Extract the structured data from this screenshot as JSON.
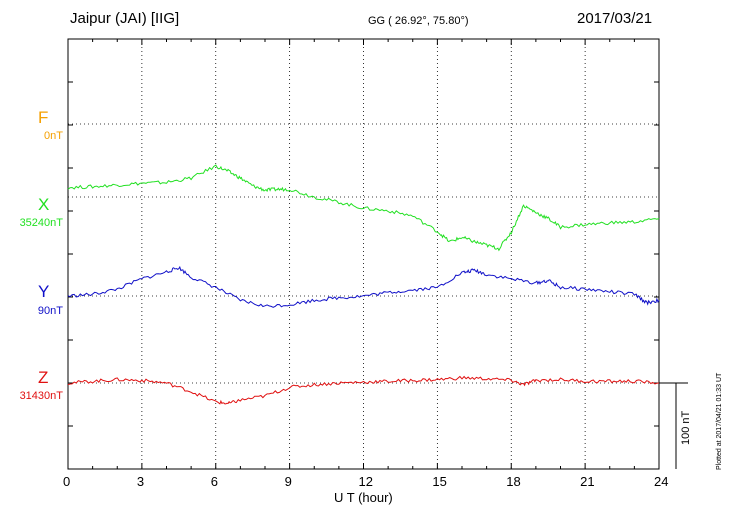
{
  "header": {
    "station": "Jaipur (JAI)  [IIG]",
    "coords": "GG ( 26.92°,  75.80°)",
    "date": "2017/03/21"
  },
  "chart_data": {
    "type": "line",
    "xlabel": "U T (hour)",
    "xlim": [
      0,
      24
    ],
    "x_ticks": [
      "0",
      "3",
      "6",
      "9",
      "12",
      "15",
      "18",
      "21",
      "24"
    ],
    "scale_bar": "100 nT",
    "plotted_note": "Plotted at 2017/04/21 01:33 UT",
    "components": [
      {
        "name": "F",
        "baseline": "0nT",
        "color": "#f5a000",
        "x": [],
        "values": []
      },
      {
        "name": "X",
        "baseline": "35240nT",
        "color": "#22e022",
        "x": [
          0,
          1,
          2,
          3,
          4,
          5,
          6,
          6.5,
          7,
          7.5,
          8,
          8.5,
          9,
          10,
          11,
          12,
          13,
          14,
          15,
          15.5,
          16,
          16.5,
          17,
          17.5,
          18,
          18.5,
          19,
          19.5,
          20,
          21,
          22,
          23,
          24
        ],
        "values": [
          11,
          12,
          14,
          16,
          17,
          22,
          36,
          30,
          22,
          13,
          8,
          9,
          9,
          0,
          -6,
          -13,
          -16,
          -22,
          -40,
          -52,
          -47,
          -52,
          -56,
          -60,
          -41,
          -10,
          -18,
          -25,
          -35,
          -32,
          -30,
          -29,
          -25
        ]
      },
      {
        "name": "Y",
        "baseline": "90nT",
        "color": "#1010c8",
        "x": [
          0,
          1,
          2,
          3,
          4,
          4.5,
          5,
          6,
          7,
          8,
          9,
          10,
          11,
          12,
          13,
          14,
          15,
          16,
          16.5,
          17,
          18,
          19,
          19.5,
          20,
          21,
          22,
          23,
          23.5,
          24
        ],
        "values": [
          0,
          2,
          8,
          20,
          28,
          33,
          22,
          10,
          -5,
          -12,
          -10,
          -5,
          -2,
          0,
          4,
          7,
          10,
          27,
          30,
          25,
          20,
          15,
          18,
          10,
          8,
          5,
          2,
          -8,
          -5
        ]
      },
      {
        "name": "Z",
        "baseline": "31430nT",
        "color": "#e01010",
        "x": [
          0,
          1,
          2,
          3,
          4,
          5,
          6,
          6.5,
          7,
          8,
          9,
          10,
          11,
          12,
          13,
          14,
          15,
          16,
          17,
          18,
          18.5,
          19,
          20,
          21,
          22,
          23,
          24
        ],
        "values": [
          0,
          2,
          4,
          3,
          0,
          -10,
          -22,
          -24,
          -20,
          -15,
          -5,
          -2,
          0,
          1,
          2,
          3,
          4,
          6,
          5,
          3,
          -2,
          3,
          4,
          2,
          2,
          2,
          0
        ]
      }
    ],
    "grid": true
  }
}
